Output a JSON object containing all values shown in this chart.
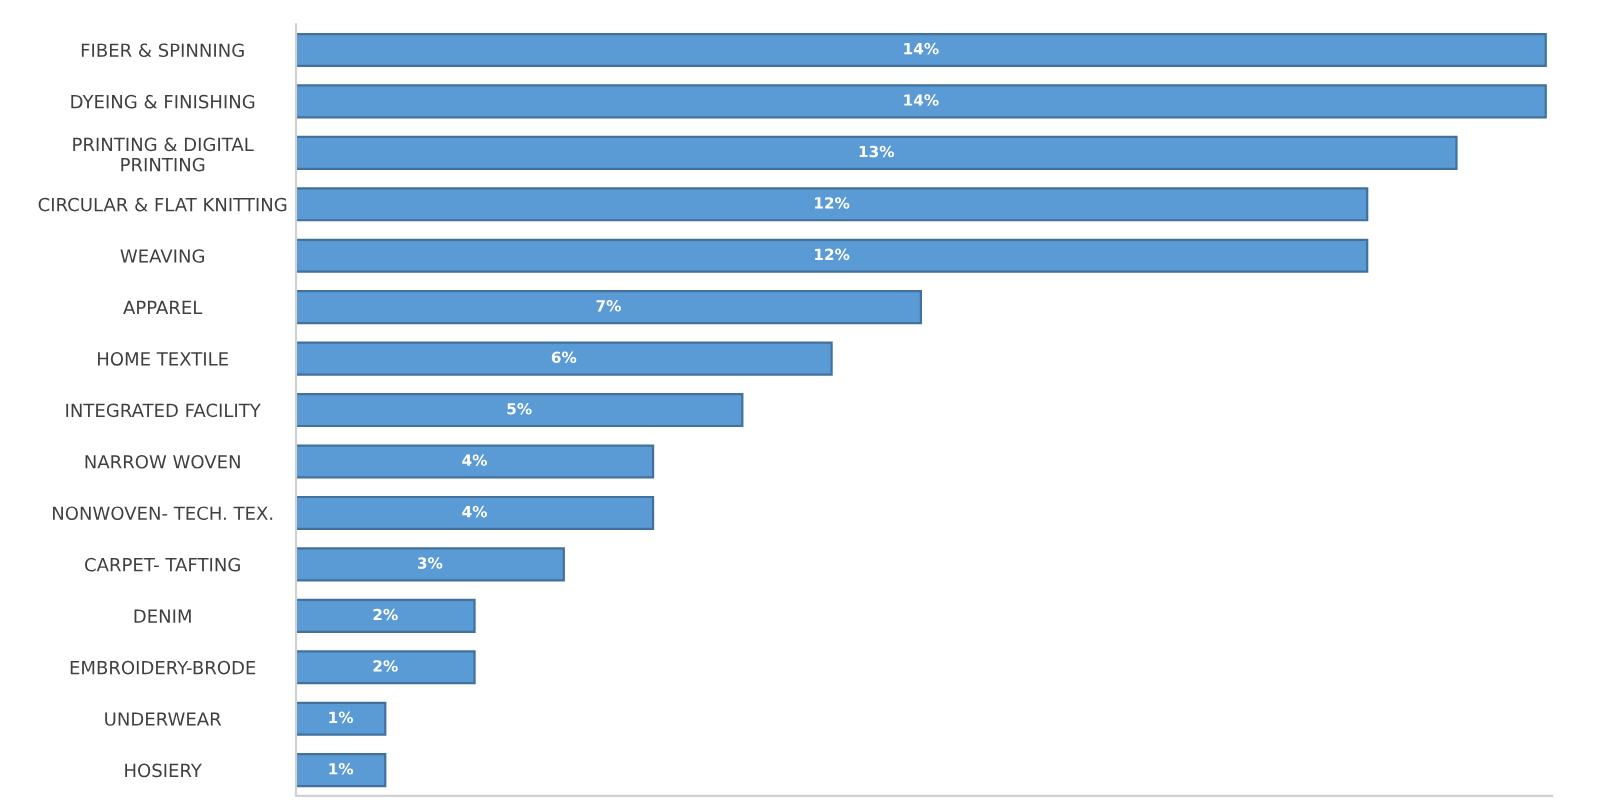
{
  "chart_data": {
    "type": "bar",
    "orientation": "horizontal",
    "categories": [
      "FIBER & SPINNING",
      "DYEING & FINISHING",
      "PRINTING & DIGITAL\nPRINTING",
      "CIRCULAR & FLAT KNITTING",
      "WEAVING",
      "APPAREL",
      "HOME TEXTILE",
      "INTEGRATED FACILITY",
      "NARROW WOVEN",
      "NONWOVEN- TECH. TEX.",
      "CARPET- TAFTING",
      "DENIM",
      "EMBROIDERY-BRODE",
      "UNDERWEAR",
      "HOSIERY"
    ],
    "values": [
      14,
      14,
      13,
      12,
      12,
      7,
      6,
      5,
      4,
      4,
      3,
      2,
      2,
      1,
      1
    ],
    "value_labels": [
      "14%",
      "14%",
      "13%",
      "12%",
      "12%",
      "7%",
      "6%",
      "5%",
      "4%",
      "4%",
      "3%",
      "2%",
      "2%",
      "1%",
      "1%"
    ],
    "color": "#5b9bd5",
    "grid": false,
    "legend": false
  }
}
